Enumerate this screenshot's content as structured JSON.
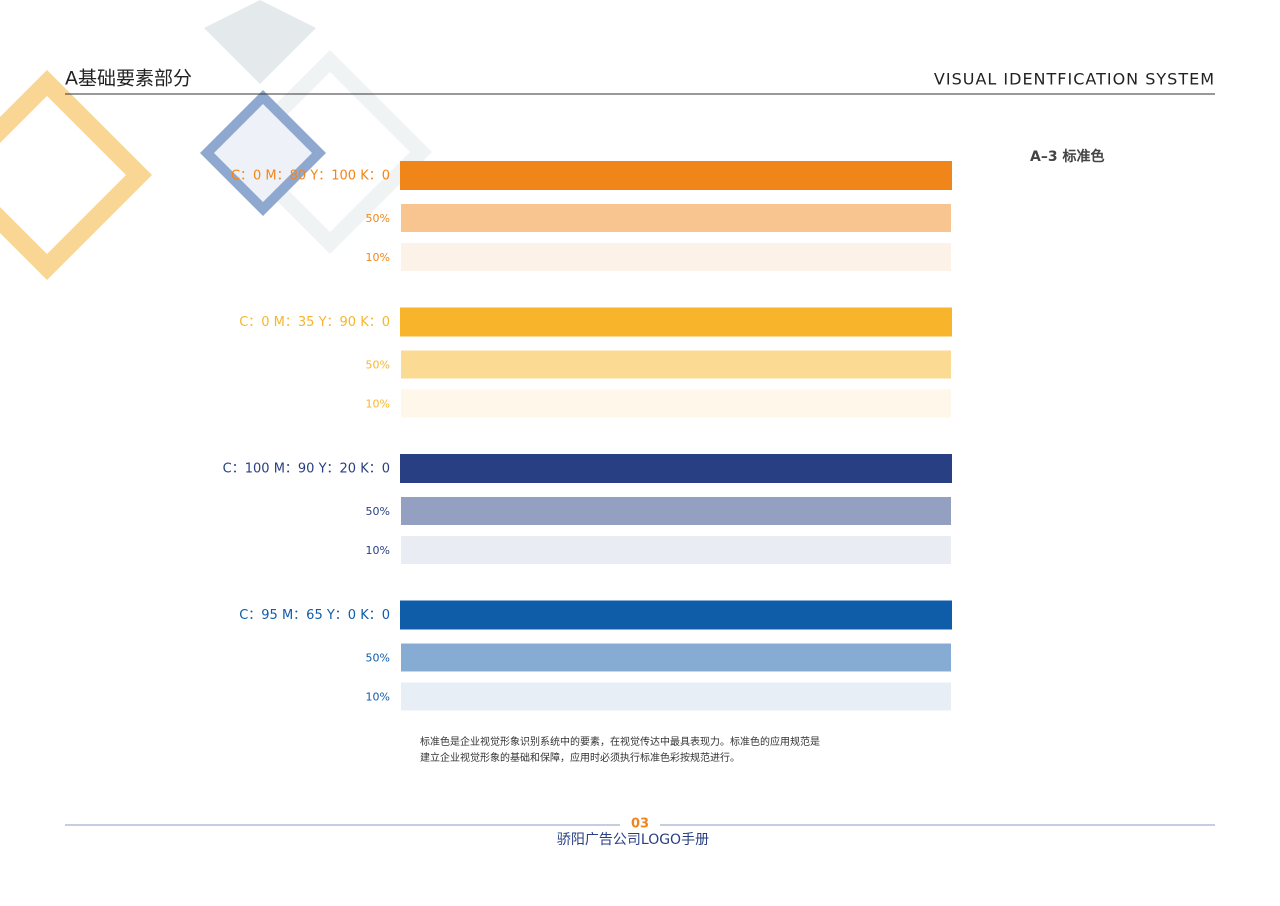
{
  "header": {
    "title": "A基础要素部分",
    "subtitle": "VISUAL IDENTFICATION SYSTEM"
  },
  "section": "A–3  标准色",
  "colors": [
    {
      "label": "C：0 M：80 Y：100 K：0",
      "color": "#f0861a",
      "shades": [
        {
          "label": "50%",
          "color": "#f8c490"
        },
        {
          "label": "10%",
          "color": "#fdf2e7"
        }
      ]
    },
    {
      "label": "C：0 M：35 Y：90 K：0",
      "color": "#f8b52b",
      "shades": [
        {
          "label": "50%",
          "color": "#fbda94"
        },
        {
          "label": "10%",
          "color": "#fef7ea"
        }
      ]
    },
    {
      "label": "C：100 M：90 Y：20 K：0",
      "color": "#283f83",
      "shades": [
        {
          "label": "50%",
          "color": "#93a0c1"
        },
        {
          "label": "10%",
          "color": "#e9ecf3"
        }
      ]
    },
    {
      "label": "C：95 M：65 Y：0 K：0",
      "color": "#0f5ca8",
      "shades": [
        {
          "label": "50%",
          "color": "#87acd4"
        },
        {
          "label": "10%",
          "color": "#e7eef6"
        }
      ]
    }
  ],
  "body": [
    "标准色是企业视觉形象识别系统中的要素，在视觉传达中最具表现力。标准色的应用规范是",
    "建立企业视觉形象的基础和保障，应用时必须执行标准色彩按规范进行。"
  ],
  "footer": {
    "page": "03",
    "title": "骄阳广告公司LOGO手册"
  }
}
